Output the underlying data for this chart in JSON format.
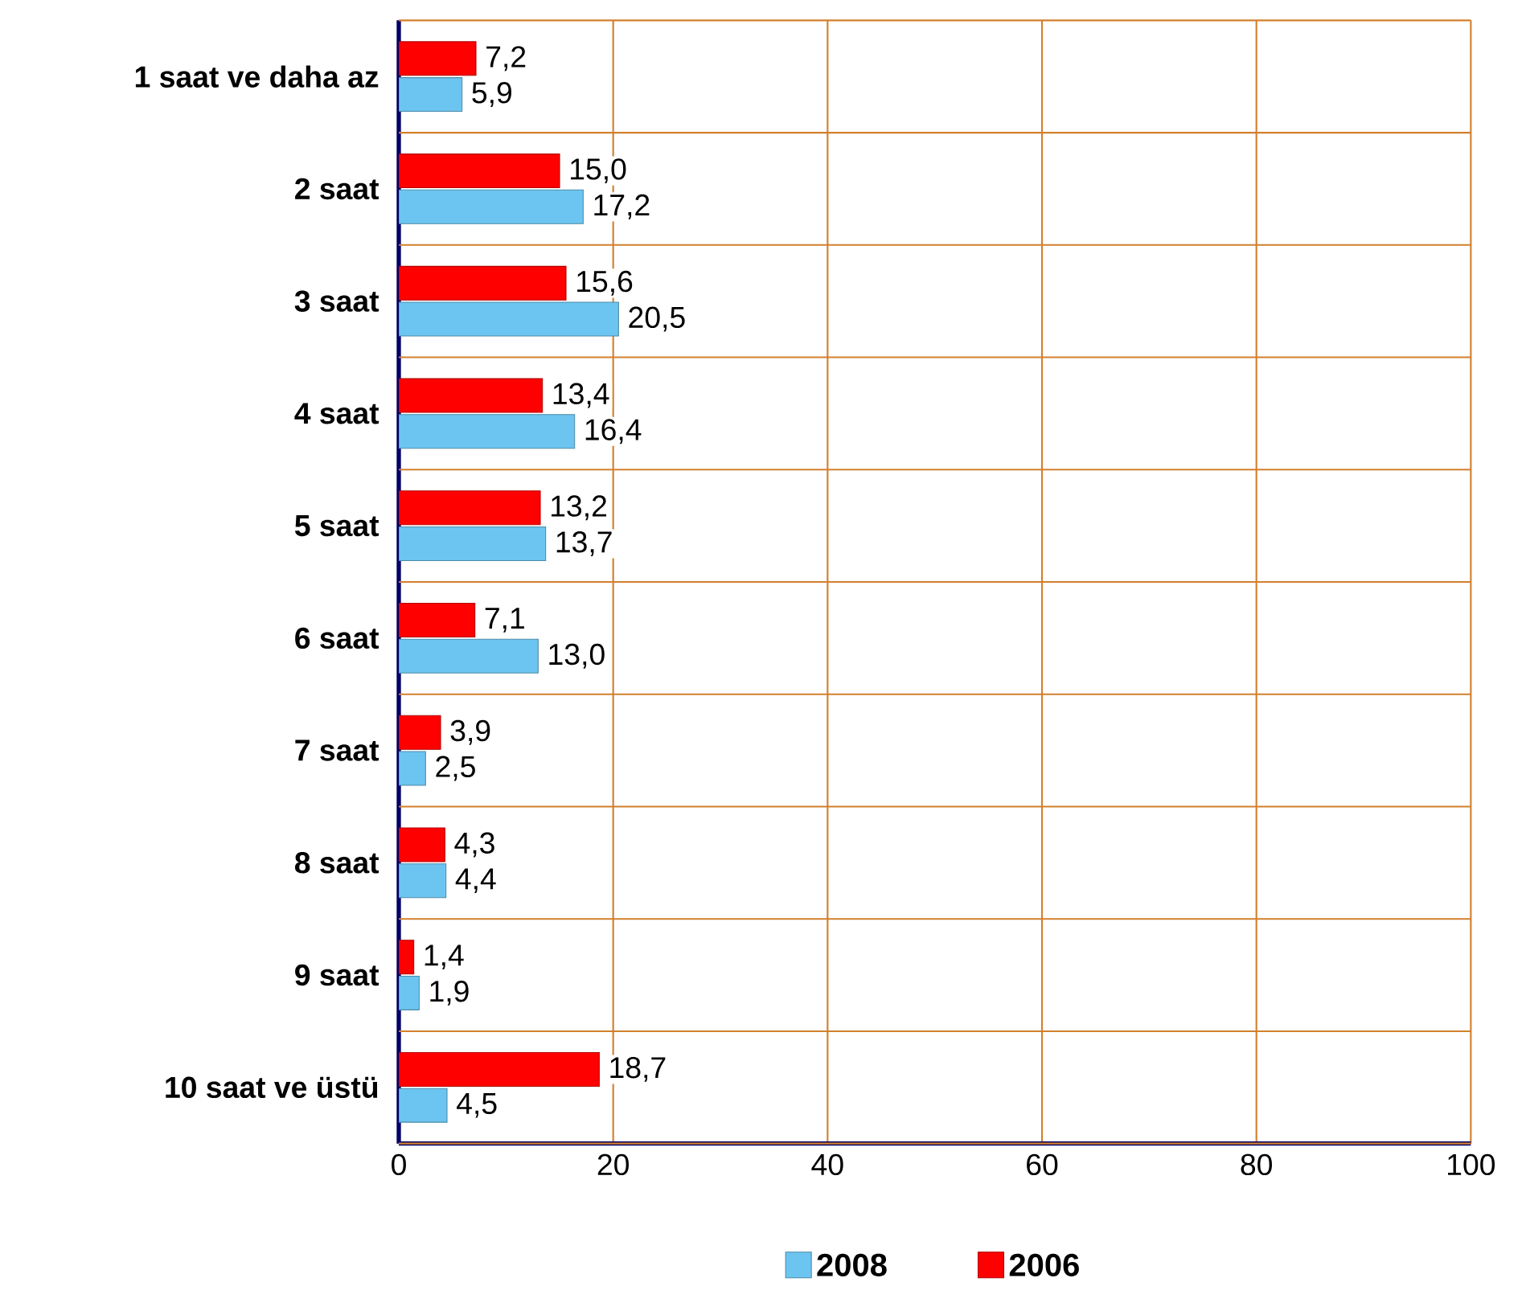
{
  "chart_data": {
    "type": "bar",
    "orientation": "horizontal",
    "categories": [
      "1 saat ve daha az",
      "2 saat",
      "3 saat",
      "4 saat",
      "5 saat",
      "6 saat",
      "7 saat",
      "8 saat",
      "9 saat",
      "10 saat ve üstü"
    ],
    "series": [
      {
        "name": "2008",
        "color": "#6cc5f0",
        "values": [
          5.9,
          17.2,
          20.5,
          16.4,
          13.7,
          13.0,
          2.5,
          4.4,
          1.9,
          4.5
        ],
        "value_labels": [
          "5,9",
          "17,2",
          "20,5",
          "16,4",
          "13,7",
          "13,0",
          "2,5",
          "4,4",
          "1,9",
          "4,5"
        ]
      },
      {
        "name": "2006",
        "color": "#ff0000",
        "values": [
          7.2,
          15.0,
          15.6,
          13.4,
          13.2,
          7.1,
          3.9,
          4.3,
          1.4,
          18.7
        ],
        "value_labels": [
          "7,2",
          "15,0",
          "15,6",
          "13,4",
          "13,2",
          "7,1",
          "3,9",
          "4,3",
          "1,4",
          "18,7"
        ]
      }
    ],
    "xlim": [
      0,
      100
    ],
    "xticks": [
      0,
      20,
      40,
      60,
      80,
      100
    ],
    "grid": true,
    "legend": "bottom"
  }
}
